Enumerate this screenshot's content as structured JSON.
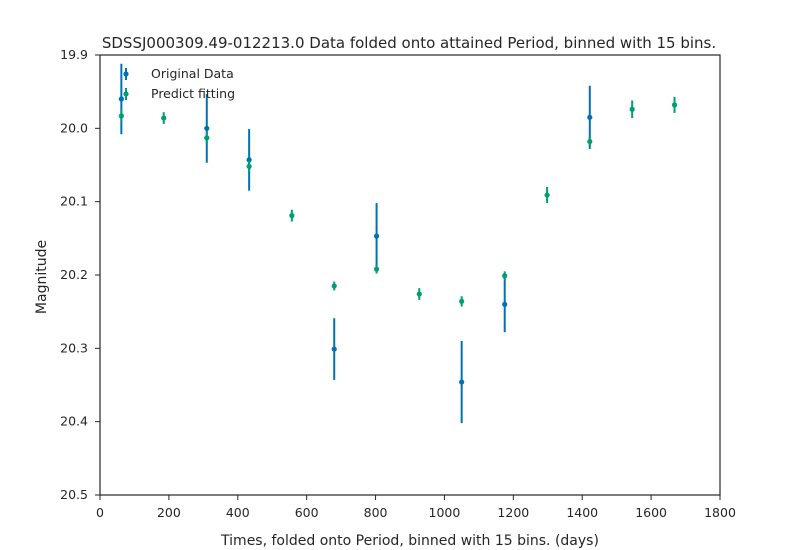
{
  "chart_data": {
    "type": "scatter",
    "title": "SDSSJ000309.49-012213.0 Data folded onto attained Period, binned with 15 bins.",
    "xlabel": "Times, folded onto Period, binned with 15 bins. (days)",
    "ylabel": "Magnitude",
    "xlim": [
      0,
      1800
    ],
    "ylim": [
      20.5,
      19.9
    ],
    "y_inverted": true,
    "x_ticks": [
      0,
      200,
      400,
      600,
      800,
      1000,
      1200,
      1400,
      1600,
      1800
    ],
    "y_ticks": [
      19.9,
      20.0,
      20.1,
      20.2,
      20.3,
      20.4,
      20.5
    ],
    "y_tick_labels": [
      "19.9",
      "20.0",
      "20.1",
      "20.2",
      "20.3",
      "20.4",
      "20.5"
    ],
    "grid": false,
    "legend_position": "top-left",
    "series": [
      {
        "name": "Original Data",
        "color": "#0072b2",
        "points": [
          {
            "x": 62,
            "y": 19.96,
            "err": 0.048
          },
          {
            "x": 310,
            "y": 20.0,
            "err": 0.047
          },
          {
            "x": 433,
            "y": 20.043,
            "err": 0.042
          },
          {
            "x": 803,
            "y": 20.147,
            "err": 0.045
          },
          {
            "x": 680,
            "y": 20.301,
            "err": 0.042
          },
          {
            "x": 1050,
            "y": 20.346,
            "err": 0.056
          },
          {
            "x": 1175,
            "y": 20.24,
            "err": 0.038
          },
          {
            "x": 1422,
            "y": 19.985,
            "err": 0.043
          }
        ]
      },
      {
        "name": "Predict fitting",
        "color": "#009e73",
        "points": [
          {
            "x": 62,
            "y": 19.983,
            "err": 0.008
          },
          {
            "x": 185,
            "y": 19.986,
            "err": 0.008
          },
          {
            "x": 310,
            "y": 20.013,
            "err": 0.008
          },
          {
            "x": 433,
            "y": 20.052,
            "err": 0.008
          },
          {
            "x": 557,
            "y": 20.119,
            "err": 0.008
          },
          {
            "x": 680,
            "y": 20.215,
            "err": 0.006
          },
          {
            "x": 803,
            "y": 20.192,
            "err": 0.006
          },
          {
            "x": 927,
            "y": 20.226,
            "err": 0.008
          },
          {
            "x": 1050,
            "y": 20.236,
            "err": 0.007
          },
          {
            "x": 1175,
            "y": 20.201,
            "err": 0.006
          },
          {
            "x": 1298,
            "y": 20.091,
            "err": 0.011
          },
          {
            "x": 1422,
            "y": 20.018,
            "err": 0.007
          },
          {
            "x": 1545,
            "y": 19.974,
            "err": 0.012
          },
          {
            "x": 1668,
            "y": 19.968,
            "err": 0.011
          }
        ]
      }
    ]
  }
}
